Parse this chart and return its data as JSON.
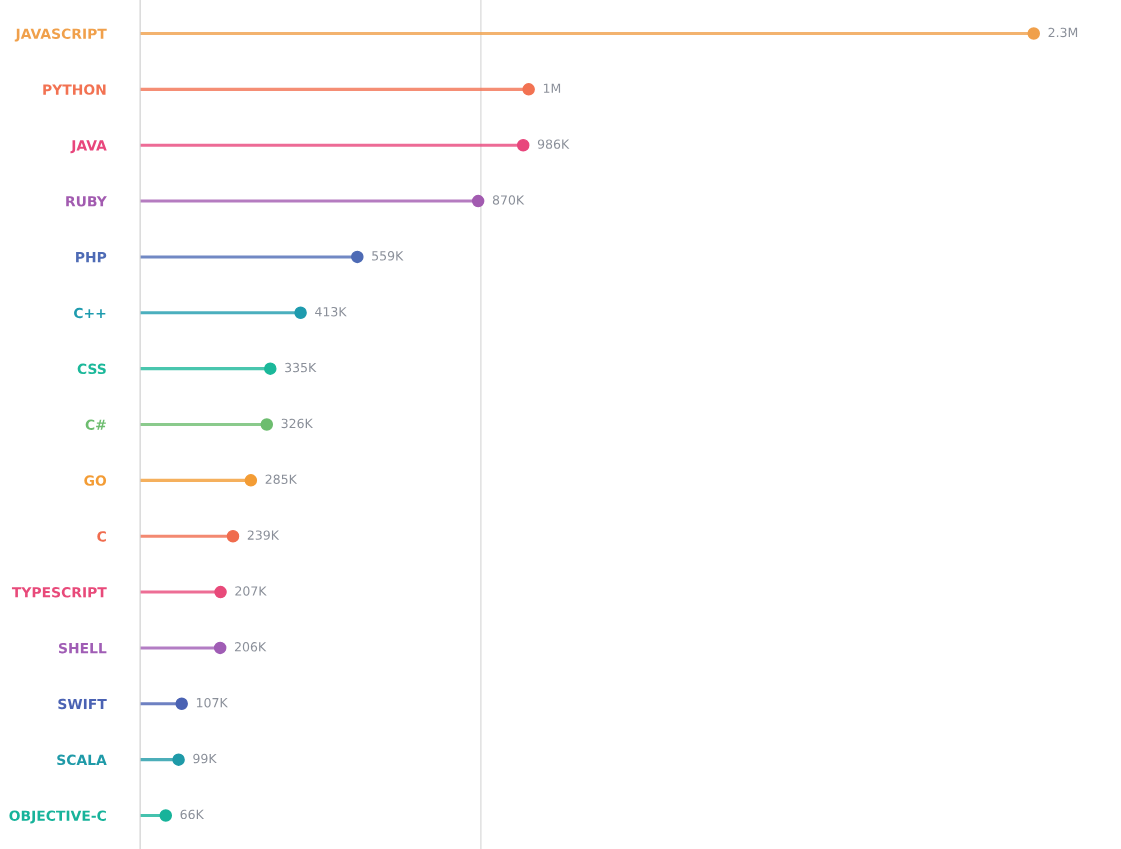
{
  "chart_data": {
    "type": "lollipop",
    "orientation": "horizontal",
    "categories": [
      "JAVASCRIPT",
      "PYTHON",
      "JAVA",
      "RUBY",
      "PHP",
      "C++",
      "CSS",
      "C#",
      "GO",
      "C",
      "TYPESCRIPT",
      "SHELL",
      "SWIFT",
      "SCALA",
      "OBJECTIVE-C"
    ],
    "values": [
      2300000,
      1000000,
      986000,
      870000,
      559000,
      413000,
      335000,
      326000,
      285000,
      239000,
      207000,
      206000,
      107000,
      99000,
      66000
    ],
    "value_labels": [
      "2.3M",
      "1M",
      "986K",
      "870K",
      "559K",
      "413K",
      "335K",
      "326K",
      "285K",
      "239K",
      "207K",
      "206K",
      "107K",
      "99K",
      "66K"
    ],
    "colors": [
      "#f0a04b",
      "#f27252",
      "#e8467c",
      "#a25bb0",
      "#4e6bb5",
      "#1e9bae",
      "#1bb89a",
      "#6dbd6f",
      "#f39c35",
      "#f06c4e",
      "#e84a7a",
      "#a05db5",
      "#4a62b3",
      "#1f9aa8",
      "#17b39a"
    ],
    "ref_lines": [
      {
        "axis": "x",
        "value": 877000,
        "color": "#dddddd"
      }
    ],
    "tick_labels": "y",
    "marker": "circle",
    "grid": false,
    "legend": false
  }
}
